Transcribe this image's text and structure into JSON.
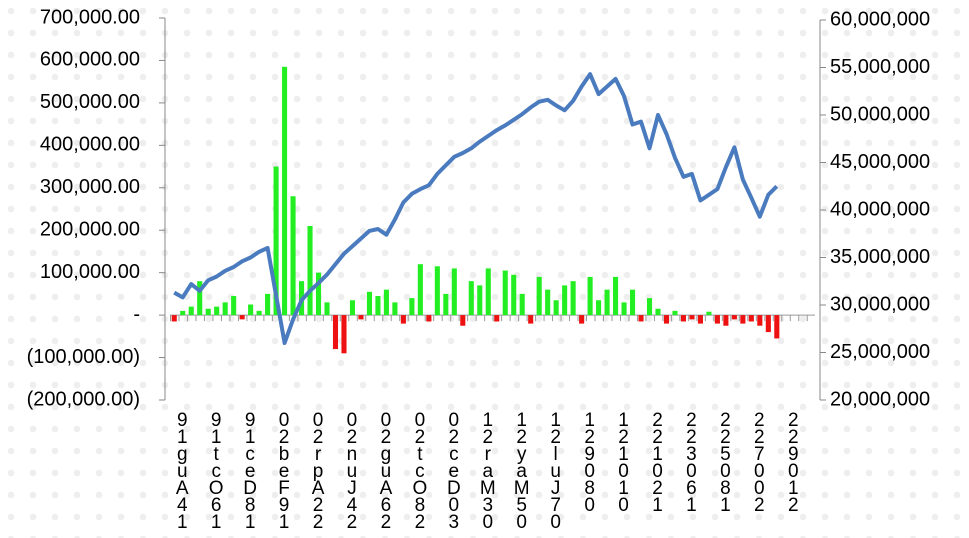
{
  "chart_data": {
    "type": "bar-line",
    "categories": [
      "91guA41",
      null,
      null,
      null,
      "91tcO61",
      null,
      null,
      null,
      "91ceD81",
      null,
      null,
      null,
      "02beF91",
      null,
      null,
      null,
      "02rpA22",
      null,
      null,
      null,
      "02nuJ42",
      null,
      null,
      null,
      "02guA62",
      null,
      null,
      null,
      "02tcO82",
      null,
      null,
      null,
      "02ceD03",
      null,
      null,
      null,
      "12raM30",
      null,
      null,
      null,
      "12yaM50",
      null,
      null,
      null,
      "12luJ70",
      null,
      null,
      null,
      "129080",
      null,
      null,
      null,
      "121010",
      null,
      null,
      null,
      "221021",
      null,
      null,
      null,
      "223061",
      null,
      null,
      null,
      "225081",
      null,
      null,
      null,
      "227002",
      null,
      null,
      null,
      "229012",
      null,
      null,
      null
    ],
    "series": [
      {
        "type": "bar",
        "axis": "y",
        "color": "#22ee22",
        "negative_color": "#ee1111",
        "values": [
          -15000,
          10000,
          20000,
          80000,
          15000,
          20000,
          30000,
          45000,
          -10000,
          25000,
          10000,
          50000,
          350000,
          585000,
          280000,
          80000,
          210000,
          100000,
          30000,
          -80000,
          -90000,
          35000,
          -10000,
          55000,
          45000,
          60000,
          30000,
          -20000,
          40000,
          120000,
          -15000,
          115000,
          50000,
          110000,
          -25000,
          80000,
          70000,
          110000,
          -15000,
          105000,
          95000,
          50000,
          -20000,
          90000,
          60000,
          35000,
          70000,
          80000,
          -20000,
          90000,
          35000,
          60000,
          90000,
          30000,
          60000,
          -15000,
          40000,
          15000,
          -20000,
          10000,
          -15000,
          -10000,
          -20000,
          8000,
          -20000,
          -25000,
          -10000,
          -20000,
          -15000,
          -25000,
          -40000,
          -55000,
          null,
          null,
          null,
          null
        ]
      },
      {
        "type": "line",
        "axis": "y2",
        "color": "#4a7bbf",
        "values": [
          31300000,
          30800000,
          32200000,
          31500000,
          32600000,
          33000000,
          33600000,
          34000000,
          34600000,
          35000000,
          35600000,
          36000000,
          31000000,
          26000000,
          28500000,
          30500000,
          31500000,
          32300000,
          33200000,
          34300000,
          35400000,
          36200000,
          37000000,
          37800000,
          38000000,
          37400000,
          39000000,
          40800000,
          41700000,
          42200000,
          42600000,
          43800000,
          44700000,
          45600000,
          46000000,
          46500000,
          47200000,
          47800000,
          48400000,
          48900000,
          49500000,
          50100000,
          50800000,
          51400000,
          51600000,
          51000000,
          50500000,
          51500000,
          53000000,
          54300000,
          52200000,
          53000000,
          53800000,
          52000000,
          49000000,
          49300000,
          46500000,
          50000000,
          48000000,
          45500000,
          43500000,
          43800000,
          41000000,
          41600000,
          42200000,
          44500000,
          46600000,
          43200000,
          41300000,
          39300000,
          41600000,
          42500000,
          null,
          null,
          null,
          null
        ]
      }
    ],
    "ylim": [
      -200000,
      700000
    ],
    "yticks": [
      {
        "value": -200000,
        "label": "(200,000.00)"
      },
      {
        "value": -100000,
        "label": "(100,000.00)"
      },
      {
        "value": 0,
        "label": "-"
      },
      {
        "value": 100000,
        "label": "100,000.00"
      },
      {
        "value": 200000,
        "label": "200,000.00"
      },
      {
        "value": 300000,
        "label": "300,000.00"
      },
      {
        "value": 400000,
        "label": "400,000.00"
      },
      {
        "value": 500000,
        "label": "500,000.00"
      },
      {
        "value": 600000,
        "label": "600,000.00"
      },
      {
        "value": 700000,
        "label": "700,000.00"
      }
    ],
    "y2lim": [
      20000000,
      60000000
    ],
    "y2ticks": [
      {
        "value": 20000000,
        "label": "20,000,000"
      },
      {
        "value": 25000000,
        "label": "25,000,000"
      },
      {
        "value": 30000000,
        "label": "30,000,000"
      },
      {
        "value": 35000000,
        "label": "35,000,000"
      },
      {
        "value": 40000000,
        "label": "40,000,000"
      },
      {
        "value": 45000000,
        "label": "45,000,000"
      },
      {
        "value": 50000000,
        "label": "50,000,000"
      },
      {
        "value": 55000000,
        "label": "55,000,000"
      },
      {
        "value": 60000000,
        "label": "60,000,000"
      }
    ]
  }
}
